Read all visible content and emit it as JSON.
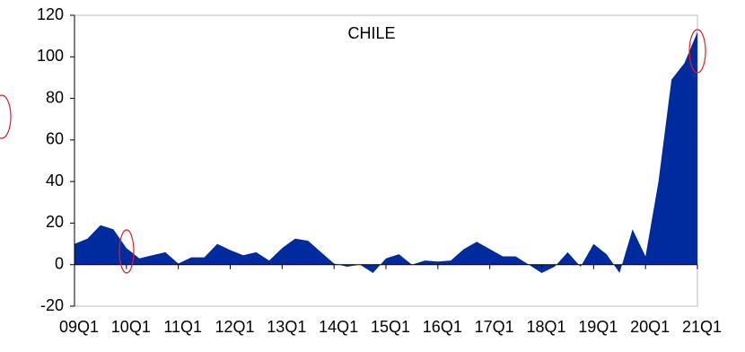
{
  "chart_data": {
    "type": "area",
    "title": "CHILE",
    "categories": [
      "09Q1",
      null,
      null,
      null,
      "10Q1",
      null,
      null,
      null,
      "11Q1",
      null,
      null,
      null,
      "12Q1",
      null,
      null,
      null,
      "13Q1",
      null,
      null,
      null,
      "14Q1",
      null,
      null,
      null,
      "15Q1",
      null,
      null,
      null,
      "16Q1",
      null,
      null,
      null,
      "17Q1",
      null,
      null,
      null,
      "18Q1",
      null,
      null,
      null,
      "19Q1",
      null,
      null,
      null,
      "20Q1",
      null,
      null,
      null,
      "21Q1"
    ],
    "values": [
      10,
      12.5,
      19,
      17,
      8,
      3,
      4.5,
      6,
      0.5,
      3.5,
      3.5,
      10,
      7,
      4.5,
      6,
      2,
      8,
      12.5,
      11.5,
      6,
      0.5,
      -1,
      0,
      -4,
      3,
      5,
      0,
      2,
      1.5,
      2,
      7.5,
      11,
      7.5,
      4,
      4,
      0,
      -4,
      -1,
      6,
      -1,
      10,
      5,
      -4,
      17,
      4,
      40,
      89,
      97,
      112
    ],
    "color": "#002b9e",
    "ylim": [
      -20,
      120
    ],
    "yticks": [
      -20,
      0,
      20,
      40,
      60,
      80,
      100,
      120
    ],
    "grid": false
  }
}
